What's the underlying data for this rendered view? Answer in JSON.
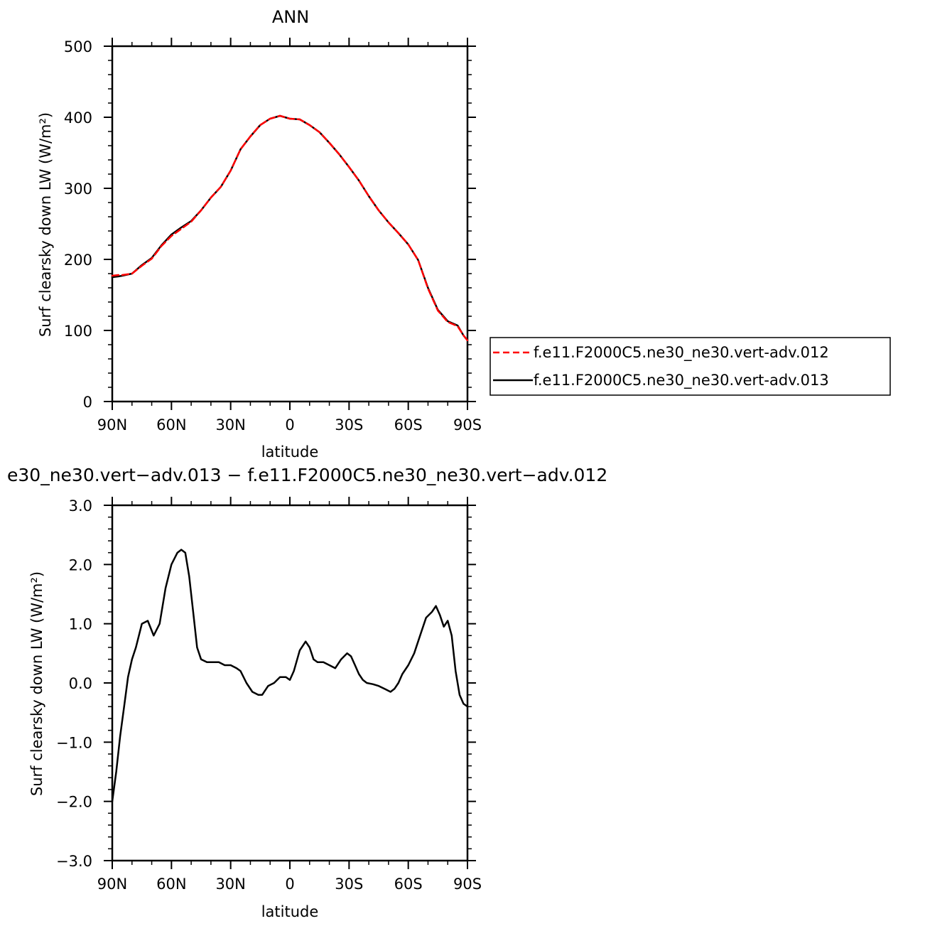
{
  "chart_data": [
    {
      "type": "line",
      "title": "ANN",
      "xlabel": "latitude",
      "ylabel": "Surf clearsky down LW (W/m²)",
      "xlim": [
        90,
        -90
      ],
      "ylim": [
        0,
        500
      ],
      "x_ticks": [
        90,
        60,
        30,
        0,
        -30,
        -60,
        -90
      ],
      "x_tick_labels": [
        "90N",
        "60N",
        "30N",
        "0",
        "30S",
        "60S",
        "90S"
      ],
      "y_ticks": [
        0,
        100,
        200,
        300,
        400,
        500
      ],
      "y_tick_labels": [
        "0",
        "100",
        "200",
        "300",
        "400",
        "500"
      ],
      "grid": false,
      "legend_position": "right, outside plot",
      "colors": {
        "series_012": "#ff0000",
        "series_013": "#000000"
      },
      "series": [
        {
          "name": "f.e11.F2000C5.ne30_ne30.vert-adv.012",
          "style": "dashed",
          "x": [
            90,
            87,
            85,
            80,
            75,
            70,
            65,
            60,
            55,
            50,
            45,
            40,
            35,
            30,
            25,
            20,
            15,
            10,
            5,
            0,
            -5,
            -10,
            -15,
            -20,
            -25,
            -30,
            -35,
            -40,
            -45,
            -50,
            -55,
            -60,
            -65,
            -70,
            -75,
            -80,
            -85,
            -88,
            -90
          ],
          "y": [
            177,
            178,
            178,
            180,
            191,
            201,
            219,
            233,
            243,
            253,
            269,
            287,
            302,
            325,
            355,
            373,
            389,
            398,
            402,
            398,
            397,
            389,
            379,
            364,
            348,
            330,
            311,
            289,
            269,
            252,
            237,
            221,
            199,
            159,
            128,
            112,
            106,
            93,
            86
          ]
        },
        {
          "name": "f.e11.F2000C5.ne30_ne30.vert-adv.013",
          "style": "solid",
          "x": [
            90,
            87,
            85,
            80,
            75,
            70,
            65,
            60,
            55,
            50,
            45,
            40,
            35,
            30,
            25,
            20,
            15,
            10,
            5,
            0,
            -5,
            -10,
            -15,
            -20,
            -25,
            -30,
            -35,
            -40,
            -45,
            -50,
            -55,
            -60,
            -65,
            -70,
            -75,
            -80,
            -85,
            -88,
            -90
          ],
          "y": [
            175,
            176,
            177,
            180,
            192,
            202,
            220,
            235,
            245,
            254,
            269,
            287,
            302,
            325,
            355,
            373,
            389,
            398,
            402,
            398,
            397,
            389,
            379,
            364,
            348,
            330,
            311,
            289,
            269,
            252,
            237,
            221,
            199,
            160,
            129,
            113,
            107,
            93,
            86
          ]
        }
      ]
    },
    {
      "type": "line",
      "title": "e30_ne30.vert−adv.013 − f.e11.F2000C5.ne30_ne30.vert−adv.012",
      "xlabel": "latitude",
      "ylabel": "Surf clearsky down LW (W/m²)",
      "xlim": [
        90,
        -90
      ],
      "ylim": [
        -3.0,
        3.0
      ],
      "x_ticks": [
        90,
        60,
        30,
        0,
        -30,
        -60,
        -90
      ],
      "x_tick_labels": [
        "90N",
        "60N",
        "30N",
        "0",
        "30S",
        "60S",
        "90S"
      ],
      "y_ticks": [
        3.0,
        2.0,
        1.0,
        0.0,
        -1.0,
        -2.0,
        -3.0
      ],
      "y_tick_labels": [
        "3.0",
        "2.0",
        "1.0",
        "0.0",
        "−1.0",
        "−2.0",
        "−3.0"
      ],
      "grid": false,
      "colors": {
        "series": "#000000"
      },
      "series": [
        {
          "style": "solid",
          "x": [
            90,
            88,
            86,
            84,
            82,
            80,
            78,
            75,
            72,
            69,
            66,
            63,
            60,
            57,
            55,
            53,
            51,
            49,
            47,
            45,
            42,
            39,
            36,
            33,
            30,
            27,
            25,
            22,
            19,
            16,
            14,
            11,
            8,
            5,
            2,
            0,
            -2,
            -5,
            -8,
            -10,
            -12,
            -14,
            -17,
            -20,
            -23,
            -26,
            -29,
            -31,
            -33,
            -35,
            -37,
            -39,
            -42,
            -45,
            -48,
            -51,
            -53,
            -55,
            -57,
            -60,
            -63,
            -66,
            -69,
            -72,
            -74,
            -76,
            -78,
            -80,
            -82,
            -84,
            -86,
            -88,
            -90
          ],
          "y": [
            -2.0,
            -1.5,
            -0.9,
            -0.4,
            0.1,
            0.4,
            0.6,
            1.0,
            1.05,
            0.8,
            1.0,
            1.6,
            2.0,
            2.2,
            2.25,
            2.2,
            1.8,
            1.2,
            0.6,
            0.4,
            0.35,
            0.35,
            0.35,
            0.3,
            0.3,
            0.25,
            0.2,
            0.0,
            -0.15,
            -0.2,
            -0.2,
            -0.05,
            0.0,
            0.1,
            0.1,
            0.05,
            0.2,
            0.55,
            0.7,
            0.6,
            0.4,
            0.35,
            0.35,
            0.3,
            0.25,
            0.4,
            0.5,
            0.45,
            0.3,
            0.15,
            0.05,
            0.0,
            -0.02,
            -0.05,
            -0.1,
            -0.15,
            -0.1,
            0.0,
            0.15,
            0.3,
            0.5,
            0.8,
            1.1,
            1.2,
            1.3,
            1.15,
            0.95,
            1.05,
            0.8,
            0.2,
            -0.2,
            -0.35,
            -0.4
          ]
        }
      ]
    }
  ]
}
